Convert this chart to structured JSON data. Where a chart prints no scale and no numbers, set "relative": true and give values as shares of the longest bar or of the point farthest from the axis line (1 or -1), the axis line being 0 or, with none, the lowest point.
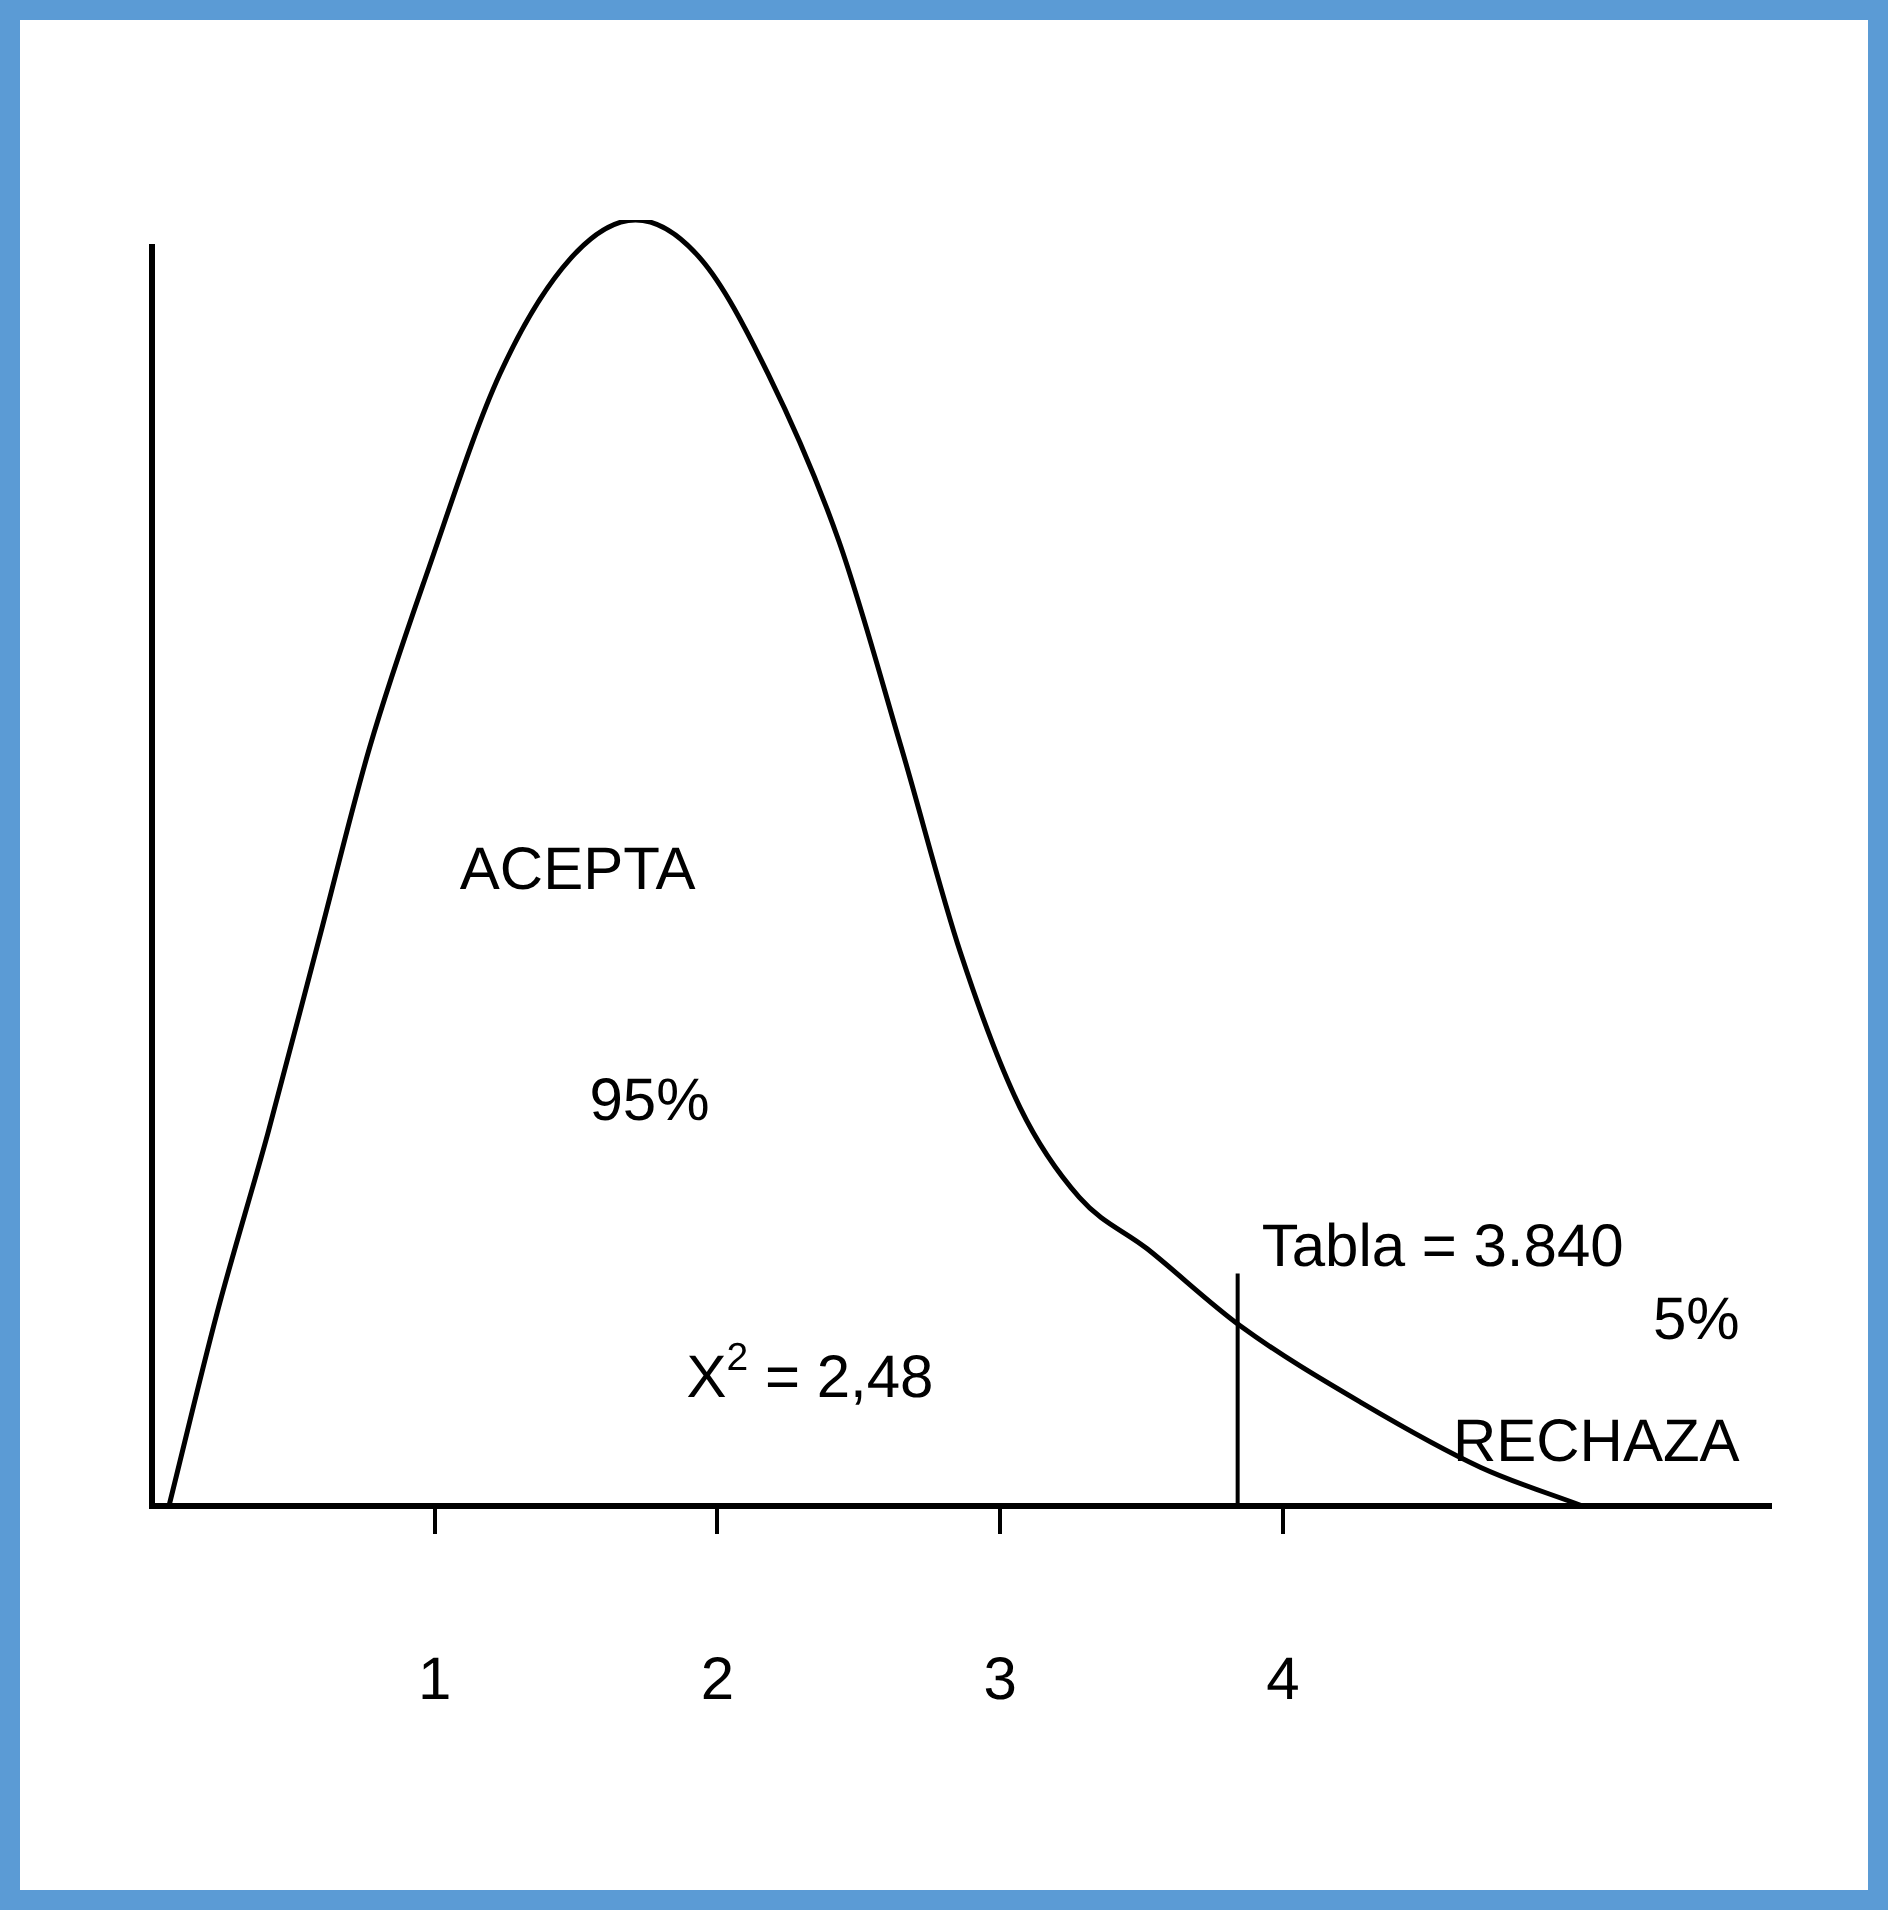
{
  "chart_data": {
    "type": "line",
    "relative": true,
    "color": "#000000",
    "marker": "none",
    "x": [
      0.06,
      0.23,
      0.41,
      0.59,
      0.77,
      0.98,
      1.23,
      1.48,
      1.71,
      1.94,
      2.18,
      2.43,
      2.65,
      2.86,
      3.07,
      3.28,
      3.52,
      3.85,
      4.28,
      4.7,
      5.06
    ],
    "values": [
      0,
      0.15,
      0.29,
      0.44,
      0.59,
      0.73,
      0.88,
      0.97,
      1,
      0.97,
      0.88,
      0.75,
      0.59,
      0.43,
      0.31,
      0.24,
      0.2,
      0.14,
      0.08,
      0.03,
      0
    ],
    "xlim": [
      0,
      5.73
    ],
    "xticks": [
      1,
      2,
      3,
      4
    ],
    "ref_lines": [
      {
        "axis": "x",
        "value": 3.84,
        "label": "Tabla = 3.840",
        "color": "#000000"
      }
    ],
    "annotations": [
      "ACEPTA",
      "95%",
      "X$^{2}$ = 2,48",
      "5%",
      "RECHAZA"
    ],
    "grid": false,
    "legend": false
  }
}
